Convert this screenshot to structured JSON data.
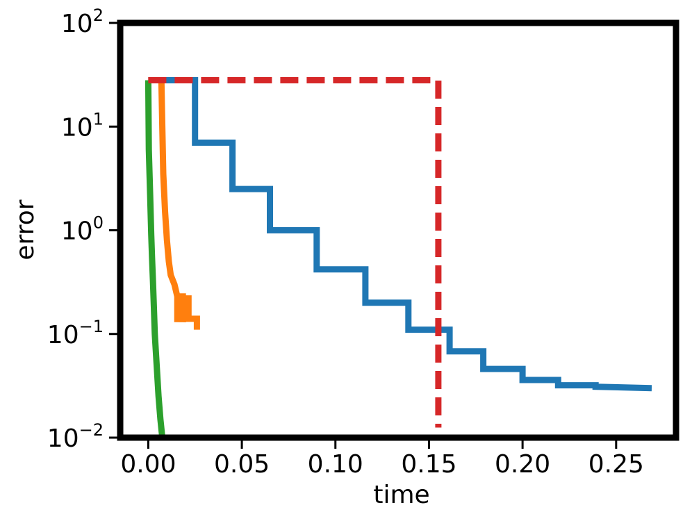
{
  "chart_data": {
    "type": "line",
    "xlabel": "time",
    "ylabel": "error",
    "xscale": "linear",
    "yscale": "log",
    "xlim": [
      -0.015,
      0.282
    ],
    "ylim": [
      0.01,
      100
    ],
    "grid": false,
    "x_ticks": [
      0.0,
      0.05,
      0.1,
      0.15,
      0.2,
      0.25
    ],
    "x_tick_labels": [
      "0.00",
      "0.05",
      "0.10",
      "0.15",
      "0.20",
      "0.25"
    ],
    "y_ticks": [
      {
        "value": 100,
        "base": "10",
        "exp": "2"
      },
      {
        "value": 10,
        "base": "10",
        "exp": "1"
      },
      {
        "value": 1,
        "base": "10",
        "exp": "0"
      },
      {
        "value": 0.1,
        "base": "10",
        "exp": "−1"
      },
      {
        "value": 0.01,
        "base": "10",
        "exp": "−2"
      }
    ],
    "series": [
      {
        "color": "#1f77b4",
        "dash": "solid",
        "step": true,
        "points": [
          [
            0.0,
            28
          ],
          [
            0.025,
            28
          ],
          [
            0.025,
            7.0
          ],
          [
            0.045,
            7.0
          ],
          [
            0.045,
            2.5
          ],
          [
            0.065,
            2.5
          ],
          [
            0.065,
            1.0
          ],
          [
            0.09,
            1.0
          ],
          [
            0.09,
            0.42
          ],
          [
            0.116,
            0.42
          ],
          [
            0.116,
            0.2
          ],
          [
            0.139,
            0.2
          ],
          [
            0.139,
            0.11
          ],
          [
            0.161,
            0.11
          ],
          [
            0.161,
            0.068
          ],
          [
            0.179,
            0.068
          ],
          [
            0.179,
            0.046
          ],
          [
            0.2,
            0.046
          ],
          [
            0.2,
            0.036
          ],
          [
            0.219,
            0.036
          ],
          [
            0.219,
            0.032
          ],
          [
            0.239,
            0.032
          ],
          [
            0.239,
            0.031
          ],
          [
            0.269,
            0.03
          ]
        ]
      },
      {
        "color": "#ff7f0e",
        "dash": "solid",
        "step": false,
        "points": [
          [
            0.0,
            28
          ],
          [
            0.007,
            28
          ],
          [
            0.0075,
            10
          ],
          [
            0.008,
            3.5
          ],
          [
            0.009,
            1.5
          ],
          [
            0.01,
            0.8
          ],
          [
            0.011,
            0.5
          ],
          [
            0.012,
            0.37
          ],
          [
            0.014,
            0.3
          ],
          [
            0.0155,
            0.23
          ],
          [
            0.0155,
            0.13
          ],
          [
            0.016,
            0.23
          ],
          [
            0.0185,
            0.23
          ],
          [
            0.0185,
            0.13
          ],
          [
            0.0195,
            0.22
          ],
          [
            0.0215,
            0.22
          ],
          [
            0.0215,
            0.14
          ],
          [
            0.026,
            0.14
          ],
          [
            0.026,
            0.11
          ]
        ]
      },
      {
        "color": "#2ca02c",
        "dash": "solid",
        "step": false,
        "points": [
          [
            0.0,
            28
          ],
          [
            0.0003,
            6
          ],
          [
            0.001,
            2.2
          ],
          [
            0.0016,
            0.9
          ],
          [
            0.002,
            0.55
          ],
          [
            0.0025,
            0.33
          ],
          [
            0.003,
            0.18
          ],
          [
            0.0035,
            0.1
          ],
          [
            0.0045,
            0.05
          ],
          [
            0.0055,
            0.025
          ],
          [
            0.0065,
            0.015
          ],
          [
            0.0075,
            0.01
          ]
        ]
      },
      {
        "color": "#d62728",
        "dash": "dashed",
        "step": false,
        "points": [
          [
            0.0,
            28
          ],
          [
            0.155,
            28
          ],
          [
            0.155,
            0.0125
          ]
        ]
      }
    ]
  }
}
